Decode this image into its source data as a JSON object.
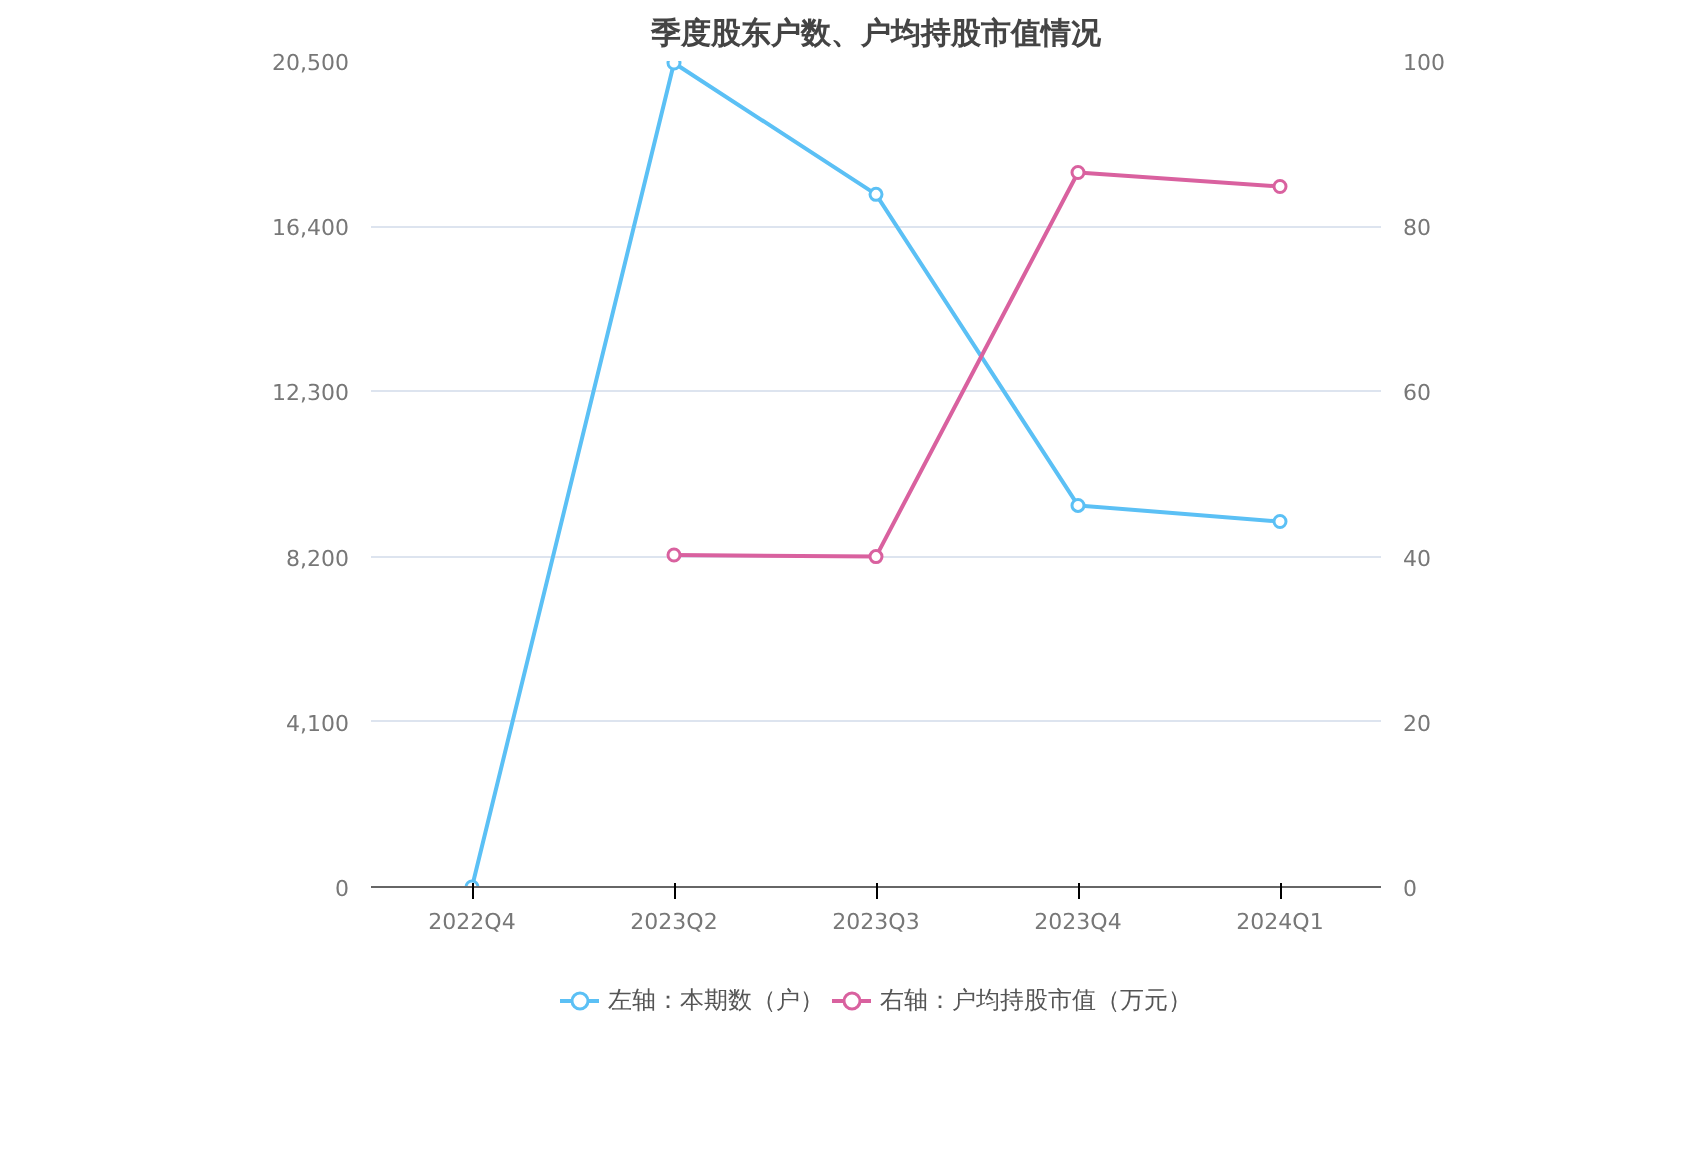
{
  "chart_data": {
    "type": "line",
    "title": "季度股东户数、户均持股市值情况",
    "categories": [
      "2022Q4",
      "2023Q2",
      "2023Q3",
      "2023Q4",
      "2024Q1"
    ],
    "series": [
      {
        "name": "左轴：本期数（户）",
        "color": "#5bc0f5",
        "values": [
          0,
          20450,
          17190,
          9470,
          9070
        ]
      },
      {
        "name": "右轴：户均持股市值（万元）",
        "color": "#d9619f",
        "values": [
          null,
          40.2,
          40.0,
          86.5,
          84.8
        ],
        "axis": "y2"
      }
    ],
    "ylim": [
      0,
      20500
    ],
    "yticks": [
      0,
      {
        "value": 4100,
        "label": "4,100"
      },
      {
        "value": 8200,
        "label": "8,200"
      },
      {
        "value": 12300,
        "label": "12,300"
      },
      {
        "value": 16400,
        "label": "16,400"
      },
      {
        "value": 20500,
        "label": "20,500"
      }
    ],
    "y2lim": [
      0,
      100
    ],
    "y2ticks": [
      0,
      20,
      40,
      60,
      80,
      100
    ],
    "grid": "y",
    "legend": "bottom",
    "marker": "circle",
    "line_style": "solid"
  }
}
